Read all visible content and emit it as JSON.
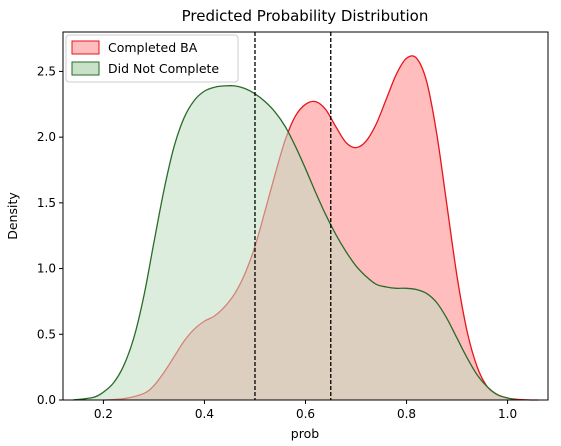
{
  "chart_data": {
    "type": "area",
    "title": "Predicted Probability Distribution",
    "xlabel": "prob",
    "ylabel": "Density",
    "xlim": [
      0.12,
      1.08
    ],
    "ylim": [
      0,
      2.8
    ],
    "xticks": [
      0.2,
      0.4,
      0.6,
      0.8,
      1.0
    ],
    "xtick_labels": [
      "0.2",
      "0.4",
      "0.6",
      "0.8",
      "1.0"
    ],
    "yticks": [
      0.0,
      0.5,
      1.0,
      1.5,
      2.0,
      2.5
    ],
    "ytick_labels": [
      "0.0",
      "0.5",
      "1.0",
      "1.5",
      "2.0",
      "2.5"
    ],
    "grid": false,
    "legend_position": "top-left",
    "vlines": [
      0.5,
      0.65
    ],
    "vline_color": "#000000",
    "vline_style": "dashed",
    "series": [
      {
        "name": "Completed BA",
        "fill": "#ffbdbd",
        "stroke": "#e8141d",
        "x": [
          0.2,
          0.24,
          0.28,
          0.3,
          0.32,
          0.34,
          0.36,
          0.38,
          0.4,
          0.42,
          0.44,
          0.46,
          0.48,
          0.5,
          0.52,
          0.54,
          0.56,
          0.58,
          0.6,
          0.62,
          0.64,
          0.66,
          0.68,
          0.7,
          0.72,
          0.74,
          0.76,
          0.78,
          0.8,
          0.82,
          0.84,
          0.86,
          0.88,
          0.9,
          0.92,
          0.94,
          0.96,
          0.98,
          1.0,
          1.02,
          1.04,
          1.06
        ],
        "y": [
          0.0,
          0.01,
          0.05,
          0.11,
          0.21,
          0.33,
          0.45,
          0.54,
          0.6,
          0.64,
          0.71,
          0.81,
          0.96,
          1.17,
          1.44,
          1.72,
          1.98,
          2.16,
          2.25,
          2.27,
          2.21,
          2.08,
          1.96,
          1.92,
          1.97,
          2.1,
          2.29,
          2.48,
          2.6,
          2.6,
          2.42,
          2.02,
          1.48,
          0.94,
          0.52,
          0.25,
          0.1,
          0.04,
          0.015,
          0.005,
          0.001,
          0.0
        ]
      },
      {
        "name": "Did Not Complete",
        "fill": "#c1dfc1",
        "stroke": "#2a6b2a",
        "x": [
          0.14,
          0.18,
          0.2,
          0.22,
          0.24,
          0.26,
          0.28,
          0.3,
          0.32,
          0.34,
          0.36,
          0.38,
          0.4,
          0.42,
          0.44,
          0.46,
          0.48,
          0.5,
          0.52,
          0.54,
          0.56,
          0.58,
          0.6,
          0.62,
          0.64,
          0.66,
          0.68,
          0.7,
          0.72,
          0.74,
          0.76,
          0.78,
          0.8,
          0.82,
          0.84,
          0.86,
          0.88,
          0.9,
          0.92,
          0.94,
          0.96,
          0.98,
          1.0,
          1.02
        ],
        "y": [
          0.0,
          0.02,
          0.06,
          0.13,
          0.26,
          0.47,
          0.79,
          1.2,
          1.6,
          1.93,
          2.15,
          2.28,
          2.35,
          2.38,
          2.39,
          2.39,
          2.37,
          2.33,
          2.27,
          2.19,
          2.08,
          1.93,
          1.76,
          1.58,
          1.41,
          1.26,
          1.13,
          1.02,
          0.94,
          0.88,
          0.86,
          0.85,
          0.85,
          0.84,
          0.81,
          0.74,
          0.62,
          0.47,
          0.32,
          0.19,
          0.1,
          0.04,
          0.015,
          0.0
        ]
      }
    ]
  }
}
